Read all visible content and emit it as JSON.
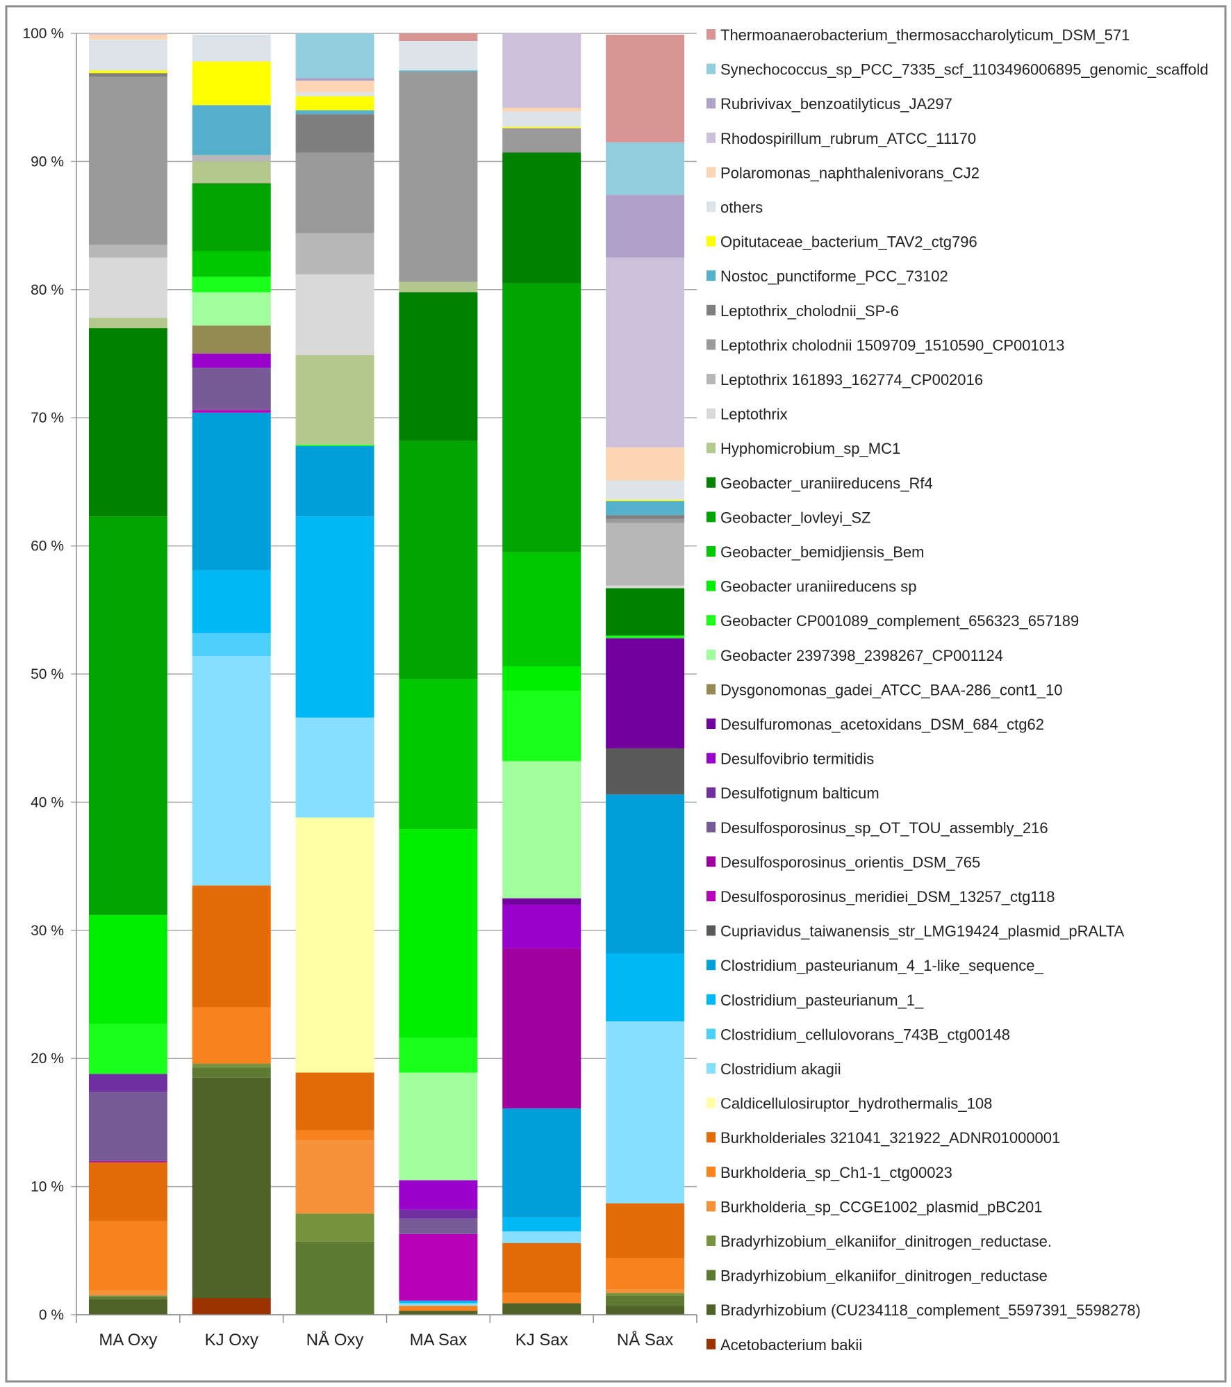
{
  "chart_data": {
    "type": "bar",
    "stacked": true,
    "percent": true,
    "title": "",
    "xlabel": "",
    "ylabel": "",
    "ylim": [
      0,
      100
    ],
    "grid": true,
    "legend_position": "right",
    "yticks": [
      {
        "value": 0,
        "label": "0 %"
      },
      {
        "value": 10,
        "label": "10 %"
      },
      {
        "value": 20,
        "label": "20 %"
      },
      {
        "value": 30,
        "label": "30 %"
      },
      {
        "value": 40,
        "label": "40 %"
      },
      {
        "value": 50,
        "label": "50 %"
      },
      {
        "value": 60,
        "label": "60 %"
      },
      {
        "value": 70,
        "label": "70 %"
      },
      {
        "value": 80,
        "label": "80 %"
      },
      {
        "value": 90,
        "label": "90 %"
      },
      {
        "value": 100,
        "label": "100 %"
      }
    ],
    "categories": [
      "MA Oxy",
      "KJ Oxy",
      "NÅ Oxy",
      "MA Sax",
      "KJ Sax",
      "NÅ Sax"
    ],
    "series": [
      {
        "name": "Acetobacterium bakii",
        "color": "#9a3300",
        "values": [
          0,
          1.3,
          0,
          0,
          0,
          0
        ]
      },
      {
        "name": "Bradyrhizobium (CU234118_complement_5597391_5598278)",
        "color": "#4f6228",
        "values": [
          1.2,
          17.2,
          0,
          0.3,
          0.9,
          0.7
        ]
      },
      {
        "name": "Bradyrhizobium_elkaniifor_dinitrogen_reductase",
        "color": "#5e7a32",
        "values": [
          0.2,
          0.8,
          5.7,
          0,
          0,
          0.8
        ]
      },
      {
        "name": "Bradyrhizobium_elkaniifor_dinitrogen_reductase.",
        "color": "#76923c",
        "values": [
          0.1,
          0.3,
          2.2,
          0,
          0,
          0.2
        ]
      },
      {
        "name": "Burkholderia_sp_CCGE1002_plasmid_pBC201",
        "color": "#f59138",
        "values": [
          0.4,
          0,
          5.7,
          0,
          0,
          0.3
        ]
      },
      {
        "name": "Burkholderia_sp_Ch1-1_ctg00023",
        "color": "#f7821e",
        "values": [
          5.4,
          4.4,
          0.8,
          0.4,
          0.8,
          2.4
        ]
      },
      {
        "name": "Burkholderiales 321041_321922_ADNR01000001",
        "color": "#e36c09",
        "values": [
          4.6,
          9.5,
          4.5,
          0,
          3.9,
          4.3
        ]
      },
      {
        "name": "Caldicellulosiruptor_hydrothermalis_108",
        "color": "#ffffa6",
        "values": [
          0,
          0,
          19.9,
          0,
          0,
          0
        ]
      },
      {
        "name": "Clostridium akagii",
        "color": "#87dfff",
        "values": [
          0,
          17.9,
          7.8,
          0.2,
          0.9,
          14.2
        ]
      },
      {
        "name": "Clostridium_cellulovorans_743B_ctg00148",
        "color": "#4dcffa",
        "values": [
          0,
          1.8,
          0,
          0,
          0,
          0
        ]
      },
      {
        "name": "Clostridium_pasteurianum_1_",
        "color": "#00b8f5",
        "values": [
          0,
          4.9,
          15.7,
          0.2,
          1.1,
          5.3
        ]
      },
      {
        "name": "Clostridium_pasteurianum_4_1-like_sequence_",
        "color": "#009fd9",
        "values": [
          0,
          12.3,
          5.5,
          0,
          8.5,
          12.4
        ]
      },
      {
        "name": "Cupriavidus_taiwanensis_str_LMG19424_plasmid_pRALTA",
        "color": "#595959",
        "values": [
          0,
          0,
          0,
          0,
          0,
          3.6
        ]
      },
      {
        "name": "Desulfosporosinus_meridiei_DSM_13257_ctg118",
        "color": "#b800b8",
        "values": [
          0.05,
          0.2,
          0,
          5.2,
          0,
          0
        ]
      },
      {
        "name": "Desulfosporosinus_orientis_DSM_765",
        "color": "#a000a0",
        "values": [
          0.05,
          0,
          0,
          0,
          12.5,
          0
        ]
      },
      {
        "name": "Desulfosporosinus_sp_OT_TOU_assembly_216",
        "color": "#775b96",
        "values": [
          5.4,
          3.3,
          0,
          1.2,
          0,
          0
        ]
      },
      {
        "name": "Desulfotignum balticum",
        "color": "#7030a0",
        "values": [
          1.4,
          0,
          0,
          0.7,
          0,
          0
        ]
      },
      {
        "name": "Desulfovibrio termitidis",
        "color": "#9900cc",
        "values": [
          0,
          1.1,
          0,
          2.3,
          3.4,
          0
        ]
      },
      {
        "name": "Desulfuromonas_acetoxidans_DSM_684_ctg62",
        "color": "#72009e",
        "values": [
          0,
          0,
          0,
          0,
          0.5,
          8.6
        ]
      },
      {
        "name": "Dysgonomonas_gadei_ATCC_BAA-286_cont1_10",
        "color": "#948a54",
        "values": [
          0,
          2.2,
          0,
          0,
          0,
          0
        ]
      },
      {
        "name": "Geobacter 2397398_2398267_CP001124",
        "color": "#a0ff9c",
        "values": [
          0,
          2.6,
          0,
          8.4,
          10.7,
          0
        ]
      },
      {
        "name": "Geobacter CP001089_complement_656323_657189",
        "color": "#1aff1a",
        "values": [
          3.9,
          1.2,
          0.1,
          2.7,
          5.5,
          0.2
        ]
      },
      {
        "name": "Geobacter uraniireducens sp",
        "color": "#00ee00",
        "values": [
          8.5,
          0,
          0,
          16.3,
          1.9,
          0
        ]
      },
      {
        "name": "Geobacter_bemidjiensis_Bem",
        "color": "#00c800",
        "values": [
          0,
          2.0,
          0,
          11.7,
          8.9,
          0
        ]
      },
      {
        "name": "Geobacter_lovleyi_SZ",
        "color": "#00a500",
        "values": [
          31.1,
          5.2,
          0,
          18.6,
          21.0,
          0
        ]
      },
      {
        "name": "Geobacter_uraniireducens_Rf4",
        "color": "#008200",
        "values": [
          14.7,
          0.1,
          0,
          11.6,
          10.2,
          3.7
        ]
      },
      {
        "name": "Hyphomicrobium_sp_MC1",
        "color": "#b2c88c",
        "values": [
          0.8,
          1.7,
          7.0,
          0.8,
          0,
          0
        ]
      },
      {
        "name": "Leptothrix",
        "color": "#d9d9d9",
        "values": [
          4.7,
          0,
          6.3,
          0,
          0,
          0.2
        ]
      },
      {
        "name": "Leptothrix 161893_162774_CP002016",
        "color": "#b7b7b7",
        "values": [
          1.0,
          0.5,
          3.2,
          0,
          0,
          4.9
        ]
      },
      {
        "name": "Leptothrix cholodnii 1509709_1510590_CP001013",
        "color": "#9a9a9a",
        "values": [
          13.1,
          0,
          6.3,
          16.4,
          1.9,
          0.3
        ]
      },
      {
        "name": "Leptothrix_cholodnii_SP-6",
        "color": "#7f7f7f",
        "values": [
          0.3,
          0,
          3.0,
          0,
          0,
          0.3
        ]
      },
      {
        "name": "Nostoc_punctiforme_PCC_73102",
        "color": "#55b0cc",
        "values": [
          0,
          3.9,
          0.3,
          0.1,
          0,
          1.1
        ]
      },
      {
        "name": "Opitutaceae_bacterium_TAV2_ctg796",
        "color": "#ffff00",
        "values": [
          0.2,
          3.4,
          1.1,
          0,
          0.1,
          0.1
        ]
      },
      {
        "name": "others",
        "color": "#dce4ea",
        "values": [
          2.4,
          2.1,
          0.3,
          2.3,
          1.2,
          1.5
        ]
      },
      {
        "name": "Polaromonas_naphthalenivorans_CJ2",
        "color": "#fcd5b4",
        "values": [
          0.4,
          0,
          0.9,
          0,
          0.3,
          2.6
        ]
      },
      {
        "name": "Rhodospirillum_rubrum_ATCC_11170",
        "color": "#ccc0da",
        "values": [
          0.1,
          0,
          0,
          0,
          5.8,
          14.8
        ]
      },
      {
        "name": "Rubrivivax_benzoatilyticus_JA297",
        "color": "#b1a0c7",
        "values": [
          0,
          0,
          0.2,
          0,
          0,
          4.9
        ]
      },
      {
        "name": "Synechococcus_sp_PCC_7335_scf_1103496006895_genomic_scaffold",
        "color": "#92cddd",
        "values": [
          0,
          0,
          3.5,
          0,
          0,
          4.1
        ]
      },
      {
        "name": "Thermoanaerobacterium_thermosaccharolyticum_DSM_571",
        "color": "#d99594",
        "values": [
          0,
          0,
          0,
          0.6,
          0,
          8.4
        ]
      }
    ]
  }
}
